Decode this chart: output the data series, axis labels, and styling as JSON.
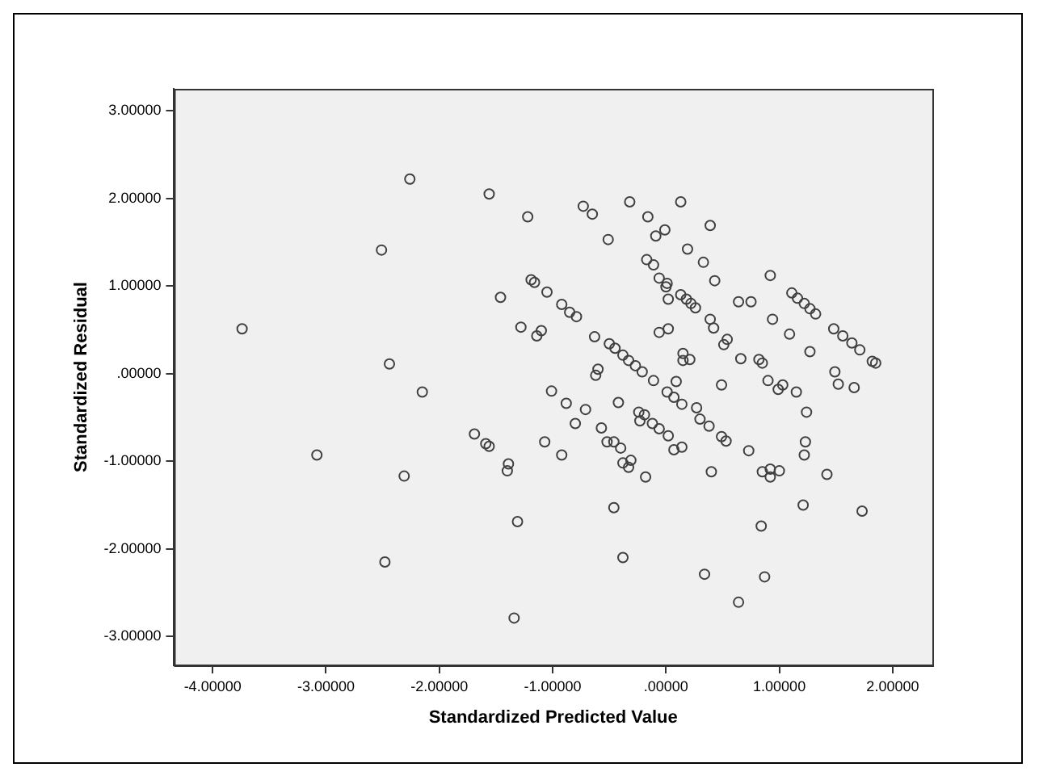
{
  "chart_data": {
    "type": "scatter",
    "xlabel": "Standardized Predicted Value",
    "ylabel": "Standardized Residual",
    "marker": "circle",
    "grid": false,
    "legend": false,
    "xlim": [
      -4.34,
      2.35
    ],
    "ylim": [
      -3.33,
      3.25
    ],
    "xticks": [
      {
        "value": -4,
        "label": "-4.00000"
      },
      {
        "value": -3,
        "label": "-3.00000"
      },
      {
        "value": -2,
        "label": "-2.00000"
      },
      {
        "value": -1,
        "label": "-1.00000"
      },
      {
        "value": 0,
        "label": ".00000"
      },
      {
        "value": 1,
        "label": "1.00000"
      },
      {
        "value": 2,
        "label": "2.00000"
      }
    ],
    "yticks": [
      {
        "value": -3,
        "label": "-3.00000"
      },
      {
        "value": -2,
        "label": "-2.00000"
      },
      {
        "value": -1,
        "label": "-1.00000"
      },
      {
        "value": 0,
        "label": ".00000"
      },
      {
        "value": 1,
        "label": "1.00000"
      },
      {
        "value": 2,
        "label": "2.00000"
      },
      {
        "value": 3,
        "label": "3.00000"
      }
    ],
    "series": [
      {
        "color": "#404040",
        "x": [
          -3.74,
          -2.26,
          -2.51,
          -2.44,
          -2.15,
          -1.56,
          -1.22,
          -1.19,
          -1.16,
          -1.46,
          -1.05,
          -0.92,
          -0.85,
          -1.28,
          -1.1,
          -1.14,
          -1.01,
          -0.88,
          -0.73,
          -0.65,
          -0.32,
          0.13,
          -0.16,
          -0.51,
          -0.01,
          -0.09,
          0.39,
          0.19,
          0.33,
          0.43,
          -0.17,
          -0.11,
          -0.06,
          0.01,
          0.0,
          0.02,
          0.13,
          0.18,
          0.22,
          0.26,
          0.92,
          0.64,
          0.75,
          0.39,
          0.42,
          0.94,
          1.09,
          1.27,
          1.11,
          1.16,
          1.22,
          1.27,
          1.32,
          1.48,
          1.56,
          1.64,
          1.71,
          1.82,
          1.85,
          1.49,
          1.52,
          1.66,
          -0.79,
          -0.63,
          -0.5,
          -0.45,
          -0.38,
          -0.33,
          -0.27,
          -0.21,
          -0.11,
          0.01,
          0.07,
          0.14,
          0.27,
          -0.06,
          0.02,
          0.15,
          0.15,
          0.21,
          0.54,
          0.51,
          0.66,
          0.82,
          0.85,
          0.9,
          0.99,
          1.03,
          1.15,
          0.49,
          0.09,
          -0.62,
          -0.6,
          -0.71,
          -0.42,
          -0.24,
          1.24,
          -1.07,
          -0.92,
          -0.8,
          -0.57,
          -0.52,
          -0.46,
          -0.4,
          -0.38,
          -0.33,
          -0.31,
          -0.18,
          -0.19,
          -0.23,
          -0.12,
          -0.06,
          0.02,
          0.07,
          0.14,
          0.3,
          0.38,
          0.49,
          0.53,
          0.73,
          0.4,
          0.85,
          0.92,
          0.92,
          1.0,
          1.23,
          1.22,
          1.42,
          1.21,
          1.73,
          0.84,
          -0.46,
          -0.38,
          0.34,
          0.87,
          0.64,
          -3.08,
          -2.31,
          -1.69,
          -1.59,
          -1.56,
          -1.39,
          -1.4,
          -1.31,
          -2.48,
          -1.34
        ],
        "values": [
          0.51,
          2.22,
          1.41,
          0.11,
          -0.21,
          2.05,
          1.79,
          1.07,
          1.04,
          0.87,
          0.93,
          0.79,
          0.7,
          0.53,
          0.49,
          0.43,
          -0.2,
          -0.34,
          1.91,
          1.82,
          1.96,
          1.96,
          1.79,
          1.53,
          1.64,
          1.57,
          1.69,
          1.42,
          1.27,
          1.06,
          1.3,
          1.24,
          1.09,
          1.03,
          0.99,
          0.85,
          0.9,
          0.85,
          0.8,
          0.75,
          1.12,
          0.82,
          0.82,
          0.62,
          0.52,
          0.62,
          0.45,
          0.25,
          0.92,
          0.86,
          0.8,
          0.74,
          0.68,
          0.51,
          0.43,
          0.35,
          0.27,
          0.14,
          0.12,
          0.02,
          -0.12,
          -0.16,
          0.65,
          0.42,
          0.34,
          0.29,
          0.21,
          0.15,
          0.09,
          0.02,
          -0.08,
          -0.21,
          -0.27,
          -0.35,
          -0.39,
          0.47,
          0.51,
          0.23,
          0.15,
          0.16,
          0.39,
          0.33,
          0.17,
          0.16,
          0.12,
          -0.08,
          -0.18,
          -0.13,
          -0.21,
          -0.13,
          -0.09,
          -0.02,
          0.05,
          -0.41,
          -0.33,
          -0.44,
          -0.44,
          -0.78,
          -0.93,
          -0.57,
          -0.62,
          -0.78,
          -0.78,
          -0.85,
          -1.02,
          -1.07,
          -0.99,
          -1.18,
          -0.47,
          -0.54,
          -0.57,
          -0.63,
          -0.71,
          -0.87,
          -0.84,
          -0.52,
          -0.6,
          -0.72,
          -0.77,
          -0.88,
          -1.12,
          -1.12,
          -1.09,
          -1.18,
          -1.11,
          -0.78,
          -0.93,
          -1.15,
          -1.5,
          -1.57,
          -1.74,
          -1.53,
          -2.1,
          -2.29,
          -2.32,
          -2.61,
          -0.93,
          -1.17,
          -0.69,
          -0.8,
          -0.83,
          -1.03,
          -1.11,
          -1.69,
          -2.15,
          -2.79
        ]
      }
    ]
  }
}
